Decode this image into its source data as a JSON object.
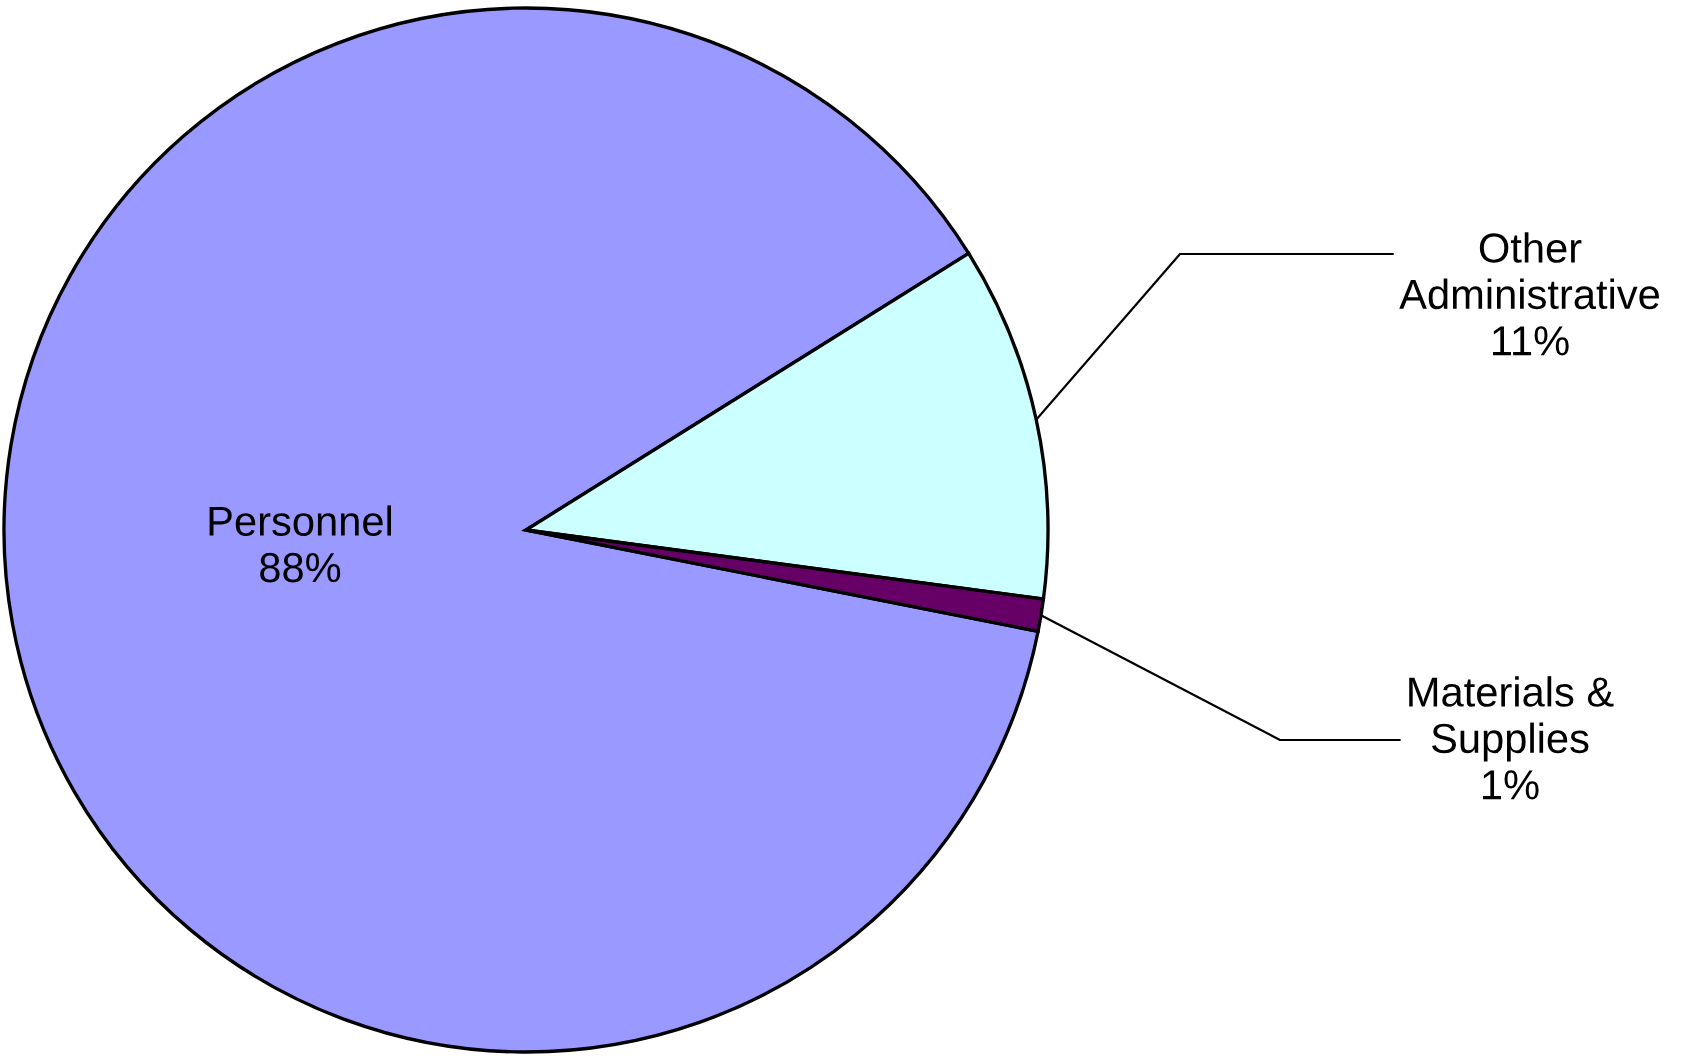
{
  "chart_data": {
    "type": "pie",
    "categories": [
      "Personnel",
      "Other Administrative",
      "Materials & Supplies"
    ],
    "values": [
      88,
      11,
      1
    ],
    "value_labels": [
      "88%",
      "11%",
      "1%"
    ],
    "colors": [
      "#9999ff",
      "#ccffff",
      "#660066"
    ]
  }
}
